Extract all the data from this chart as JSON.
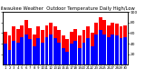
{
  "title": "Milwaukee Weather  Outdoor Temperature Daily High/Low",
  "title_fontsize": 3.8,
  "highs": [
    62,
    55,
    72,
    68,
    75,
    85,
    70,
    58,
    72,
    65,
    75,
    80,
    72,
    65,
    55,
    48,
    62,
    68,
    55,
    65,
    72,
    60,
    80,
    90,
    85,
    75,
    80,
    78,
    72,
    75
  ],
  "lows": [
    40,
    28,
    45,
    42,
    52,
    58,
    48,
    35,
    50,
    42,
    52,
    58,
    50,
    42,
    32,
    25,
    40,
    45,
    32,
    42,
    50,
    35,
    58,
    65,
    58,
    52,
    58,
    55,
    50,
    52
  ],
  "high_color": "#ff0000",
  "low_color": "#0000ff",
  "bg_color": "#ffffff",
  "ylim": [
    0,
    100
  ],
  "yticks": [
    20,
    40,
    60,
    80,
    100
  ],
  "tick_fontsize": 3.2,
  "xlabel_fontsize": 2.8,
  "n_bars": 30
}
